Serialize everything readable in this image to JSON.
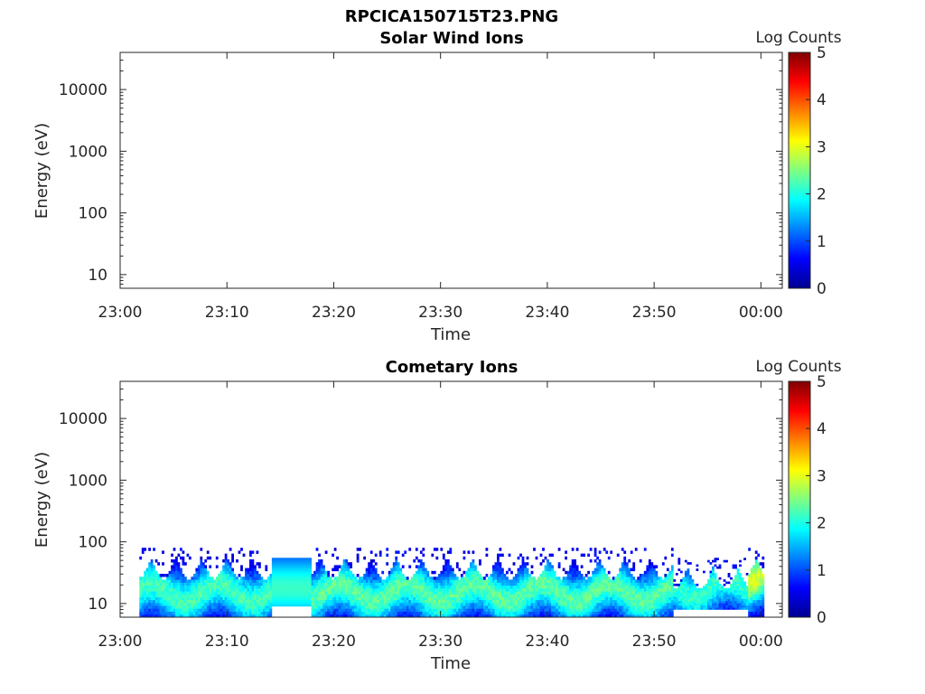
{
  "figure_title": "RPCICA150715T23.PNG",
  "colors": {
    "axis": "#262626",
    "jet": [
      "#00008f",
      "#0000ff",
      "#0080ff",
      "#00ffff",
      "#80ff80",
      "#ffff00",
      "#ff8000",
      "#ff0000",
      "#800000"
    ]
  },
  "chart_data": [
    {
      "type": "heatmap",
      "title": "Solar Wind Ions",
      "xlabel": "Time",
      "ylabel": "Energy (eV)",
      "x_tick_labels": [
        "23:00",
        "23:10",
        "23:20",
        "23:30",
        "23:40",
        "23:50",
        "00:00"
      ],
      "xlim_minutes": [
        0,
        62
      ],
      "y_scale": "log",
      "y_ticks": [
        10,
        100,
        1000,
        10000
      ],
      "y_tick_labels": [
        "10",
        "100",
        "1000",
        "10000"
      ],
      "ylim": [
        6,
        40000
      ],
      "colorbar": {
        "label": "Log Counts",
        "range": [
          0,
          5
        ],
        "ticks": [
          0,
          1,
          2,
          3,
          4,
          5
        ],
        "colormap": "jet"
      },
      "data_description": "No counts recorded",
      "regions": []
    },
    {
      "type": "heatmap",
      "title": "Cometary Ions",
      "xlabel": "Time",
      "ylabel": "Energy (eV)",
      "x_tick_labels": [
        "23:00",
        "23:10",
        "23:20",
        "23:30",
        "23:40",
        "23:50",
        "00:00"
      ],
      "xlim_minutes": [
        0,
        62
      ],
      "y_scale": "log",
      "y_ticks": [
        10,
        100,
        1000,
        10000
      ],
      "y_tick_labels": [
        "10",
        "100",
        "1000",
        "10000"
      ],
      "ylim": [
        6,
        40000
      ],
      "colorbar": {
        "label": "Log Counts",
        "range": [
          0,
          5
        ],
        "ticks": [
          0,
          1,
          2,
          3,
          4,
          5
        ],
        "colormap": "jet"
      },
      "regions": [
        {
          "t_start": 1.8,
          "t_end": 14.2,
          "e_low": 6,
          "e_high": 80,
          "peak_energy": 15,
          "peak_log": 1.8
        },
        {
          "t_start": 14.2,
          "t_end": 17.9,
          "e_low": 9,
          "e_high": 55,
          "peak_energy": 18,
          "peak_log": 1.8,
          "uniform": true
        },
        {
          "t_start": 17.9,
          "t_end": 51.8,
          "e_low": 6,
          "e_high": 80,
          "peak_energy": 15,
          "peak_log": 1.9
        },
        {
          "t_start": 51.8,
          "t_end": 58.8,
          "e_low": 8,
          "e_high": 55,
          "peak_energy": 18,
          "peak_log": 1.7
        },
        {
          "t_start": 58.8,
          "t_end": 60.3,
          "e_low": 6,
          "e_high": 80,
          "peak_energy": 30,
          "peak_log": 2.5
        }
      ]
    }
  ]
}
